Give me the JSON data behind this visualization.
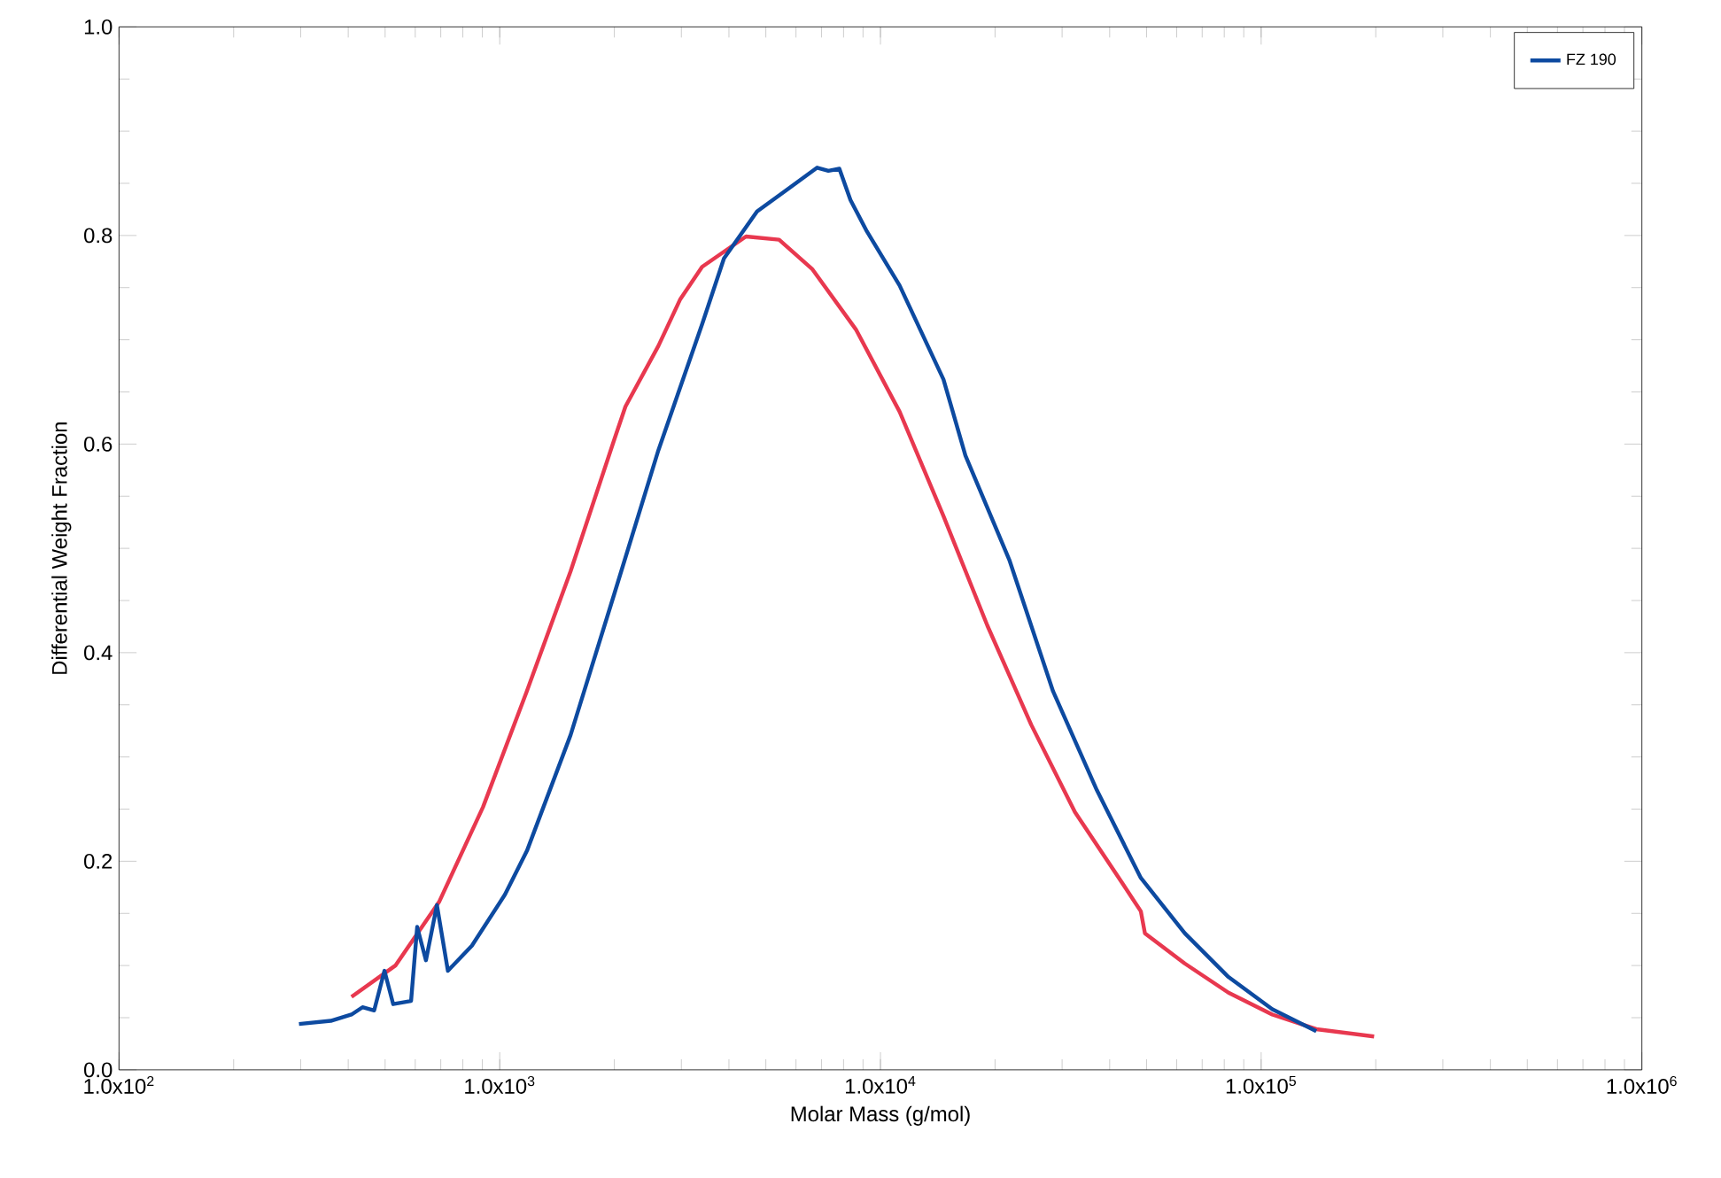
{
  "chart_data": {
    "type": "line",
    "xlabel": "Molar Mass (g/mol)",
    "ylabel": "Differential Weight Fraction",
    "log": "x",
    "grid": false,
    "legend": "top right",
    "line_style": "solid",
    "marker": "none",
    "xlim": [
      100,
      1000000
    ],
    "ylim": [
      0,
      1
    ],
    "xticks": [
      {
        "value": 100,
        "label": "1.0x10$^{2}$"
      },
      {
        "value": 1000,
        "label": "1.0x10$^{3}$"
      },
      {
        "value": 10000,
        "label": "1.0x10$^{4}$"
      },
      {
        "value": 100000,
        "label": "1.0x10$^{5}$"
      },
      {
        "value": 1000000,
        "label": "1.0x10$^{6}$"
      }
    ],
    "yticks": [
      {
        "value": 0,
        "label": "0.0"
      },
      {
        "value": 0.2,
        "label": "0.2"
      },
      {
        "value": 0.4,
        "label": "0.4"
      },
      {
        "value": 0.6,
        "label": "0.6"
      },
      {
        "value": 0.8,
        "label": "0.8"
      },
      {
        "value": 1,
        "label": "1.0"
      }
    ],
    "series": [
      {
        "color": "#e8384f",
        "x": [
          408,
          532,
          693,
          904,
          1178,
          1535,
          2002,
          2139,
          2610,
          2981,
          3401,
          4434,
          5417,
          6612,
          8617,
          11230,
          14640,
          19090,
          24880,
          32440,
          42290,
          48300,
          49500,
          62960,
          82060,
          107000,
          139600,
          198000
        ],
        "values": [
          0.07,
          0.1,
          0.161,
          0.252,
          0.363,
          0.478,
          0.605,
          0.636,
          0.694,
          0.739,
          0.77,
          0.799,
          0.796,
          0.768,
          0.71,
          0.631,
          0.531,
          0.426,
          0.331,
          0.247,
          0.184,
          0.152,
          0.131,
          0.102,
          0.074,
          0.053,
          0.039,
          0.032
        ]
      },
      {
        "name": "FZ 190",
        "color": "#0d4aa0",
        "x": [
          297,
          360,
          408,
          436,
          468,
          498,
          525,
          585,
          607,
          640,
          684,
          731,
          845,
          1032,
          1179,
          1535,
          2002,
          2610,
          3401,
          3882,
          4740,
          5784,
          6820,
          7300,
          7800,
          8340,
          9210,
          11230,
          14640,
          16720,
          21800,
          28400,
          37040,
          48300,
          63000,
          82060,
          107000,
          139600
        ],
        "values": [
          0.044,
          0.047,
          0.053,
          0.06,
          0.057,
          0.095,
          0.063,
          0.066,
          0.137,
          0.105,
          0.158,
          0.095,
          0.119,
          0.168,
          0.21,
          0.321,
          0.457,
          0.594,
          0.715,
          0.778,
          0.823,
          0.846,
          0.865,
          0.862,
          0.864,
          0.834,
          0.804,
          0.752,
          0.662,
          0.589,
          0.489,
          0.363,
          0.268,
          0.184,
          0.131,
          0.089,
          0.058,
          0.037
        ]
      }
    ]
  }
}
